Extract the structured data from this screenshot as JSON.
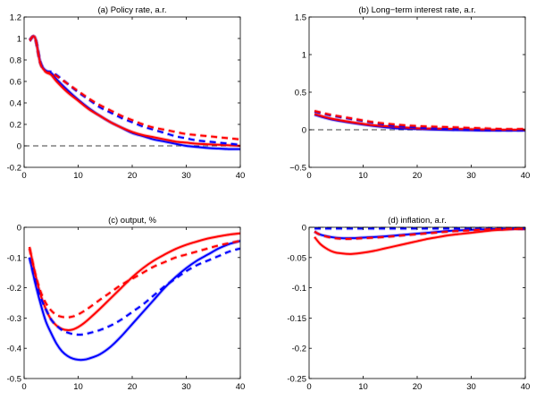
{
  "chart_data": [
    {
      "type": "line",
      "title": "(a) Policy rate, a.r.",
      "xlabel": "",
      "ylabel": "",
      "xlim": [
        0,
        40
      ],
      "ylim": [
        -0.2,
        1.2
      ],
      "xticks": [
        0,
        10,
        20,
        30,
        40
      ],
      "yticks": [
        -0.2,
        0,
        0.2,
        0.4,
        0.6,
        0.8,
        1,
        1.2
      ],
      "ytick_labels": [
        "-0.2",
        "0",
        "0.2",
        "0.4",
        "0.6",
        "0.8",
        "1",
        "1.2"
      ],
      "grid": false,
      "zero_line": true,
      "series": [
        {
          "name": "blue solid",
          "color": "#0000ff",
          "style": "solid",
          "x": [
            1,
            2,
            3,
            4,
            5,
            6,
            8,
            10,
            12,
            14,
            16,
            18,
            20,
            22,
            24,
            26,
            28,
            30,
            32,
            34,
            36,
            38,
            40
          ],
          "y": [
            0.98,
            1.01,
            0.78,
            0.7,
            0.68,
            0.62,
            0.52,
            0.43,
            0.35,
            0.28,
            0.22,
            0.17,
            0.12,
            0.09,
            0.06,
            0.04,
            0.02,
            0.0,
            -0.01,
            -0.02,
            -0.025,
            -0.03,
            -0.03
          ]
        },
        {
          "name": "red solid",
          "color": "#ff0000",
          "style": "solid",
          "x": [
            1,
            2,
            3,
            4,
            5,
            6,
            8,
            10,
            12,
            14,
            16,
            18,
            20,
            22,
            24,
            26,
            28,
            30,
            32,
            34,
            36,
            38,
            40
          ],
          "y": [
            0.98,
            1.01,
            0.77,
            0.69,
            0.66,
            0.6,
            0.5,
            0.42,
            0.34,
            0.28,
            0.22,
            0.17,
            0.13,
            0.1,
            0.08,
            0.06,
            0.04,
            0.03,
            0.02,
            0.015,
            0.01,
            0.005,
            0.0
          ]
        },
        {
          "name": "blue dashed",
          "color": "#0000ff",
          "style": "dashed",
          "x": [
            1,
            2,
            3,
            4,
            5,
            6,
            8,
            10,
            12,
            14,
            16,
            18,
            20,
            22,
            24,
            26,
            28,
            30,
            32,
            34,
            36,
            38,
            40
          ],
          "y": [
            0.98,
            1.01,
            0.78,
            0.7,
            0.69,
            0.66,
            0.58,
            0.5,
            0.43,
            0.36,
            0.31,
            0.26,
            0.22,
            0.18,
            0.15,
            0.12,
            0.09,
            0.07,
            0.05,
            0.04,
            0.03,
            0.02,
            0.01
          ]
        },
        {
          "name": "red dashed",
          "color": "#ff0000",
          "style": "dashed",
          "x": [
            1,
            2,
            3,
            4,
            5,
            6,
            8,
            10,
            12,
            14,
            16,
            18,
            20,
            22,
            24,
            26,
            28,
            30,
            32,
            34,
            36,
            38,
            40
          ],
          "y": [
            0.98,
            1.01,
            0.77,
            0.69,
            0.68,
            0.65,
            0.58,
            0.51,
            0.44,
            0.38,
            0.33,
            0.28,
            0.24,
            0.2,
            0.17,
            0.15,
            0.13,
            0.11,
            0.1,
            0.09,
            0.08,
            0.07,
            0.06
          ]
        }
      ]
    },
    {
      "type": "line",
      "title": "(b) Long−term interest rate, a.r.",
      "xlabel": "",
      "ylabel": "",
      "xlim": [
        0,
        40
      ],
      "ylim": [
        -0.5,
        1.5
      ],
      "xticks": [
        0,
        10,
        20,
        30,
        40
      ],
      "yticks": [
        -0.5,
        0,
        0.5,
        1,
        1.5
      ],
      "ytick_labels": [
        "−0.5",
        "0",
        "0.5",
        "1",
        "1.5"
      ],
      "grid": false,
      "zero_line": true,
      "series": [
        {
          "name": "blue solid",
          "color": "#0000ff",
          "style": "solid",
          "x": [
            1,
            4,
            8,
            12,
            16,
            20,
            24,
            28,
            32,
            36,
            40
          ],
          "y": [
            0.2,
            0.14,
            0.09,
            0.05,
            0.02,
            0.01,
            0.0,
            -0.005,
            -0.01,
            -0.01,
            -0.01
          ]
        },
        {
          "name": "red solid",
          "color": "#ff0000",
          "style": "solid",
          "x": [
            1,
            4,
            8,
            12,
            16,
            20,
            24,
            28,
            32,
            36,
            40
          ],
          "y": [
            0.21,
            0.15,
            0.1,
            0.06,
            0.04,
            0.02,
            0.015,
            0.01,
            0.005,
            0.0,
            0.0
          ]
        },
        {
          "name": "blue dashed",
          "color": "#0000ff",
          "style": "dashed",
          "x": [
            1,
            4,
            8,
            12,
            16,
            20,
            24,
            28,
            32,
            36,
            40
          ],
          "y": [
            0.24,
            0.19,
            0.14,
            0.09,
            0.05,
            0.03,
            0.015,
            0.005,
            0.0,
            -0.005,
            -0.005
          ]
        },
        {
          "name": "red dashed",
          "color": "#ff0000",
          "style": "dashed",
          "x": [
            1,
            4,
            8,
            12,
            16,
            20,
            24,
            28,
            32,
            36,
            40
          ],
          "y": [
            0.25,
            0.2,
            0.15,
            0.1,
            0.07,
            0.05,
            0.04,
            0.03,
            0.02,
            0.01,
            0.01
          ]
        }
      ]
    },
    {
      "type": "line",
      "title": "(c) output, %",
      "xlabel": "",
      "ylabel": "",
      "xlim": [
        0,
        40
      ],
      "ylim": [
        -0.5,
        0
      ],
      "xticks": [
        0,
        10,
        20,
        30,
        40
      ],
      "yticks": [
        -0.5,
        -0.4,
        -0.3,
        -0.2,
        -0.1,
        0
      ],
      "ytick_labels": [
        "-0.5",
        "-0.4",
        "-0.3",
        "-0.2",
        "-0.1",
        "0"
      ],
      "grid": false,
      "zero_line": false,
      "series": [
        {
          "name": "blue solid",
          "color": "#0000ff",
          "style": "solid",
          "x": [
            1,
            2,
            3,
            4,
            5,
            6,
            7,
            8,
            9,
            10,
            11,
            12,
            14,
            16,
            18,
            20,
            22,
            24,
            26,
            28,
            30,
            32,
            34,
            36,
            38,
            40
          ],
          "y": [
            -0.1,
            -0.18,
            -0.25,
            -0.31,
            -0.35,
            -0.385,
            -0.41,
            -0.425,
            -0.434,
            -0.438,
            -0.438,
            -0.434,
            -0.42,
            -0.395,
            -0.36,
            -0.32,
            -0.28,
            -0.24,
            -0.2,
            -0.165,
            -0.135,
            -0.11,
            -0.09,
            -0.07,
            -0.055,
            -0.045
          ]
        },
        {
          "name": "red solid",
          "color": "#ff0000",
          "style": "solid",
          "x": [
            1,
            2,
            3,
            4,
            5,
            6,
            7,
            8,
            9,
            10,
            11,
            12,
            14,
            16,
            18,
            20,
            22,
            24,
            26,
            28,
            30,
            32,
            34,
            36,
            38,
            40
          ],
          "y": [
            -0.065,
            -0.15,
            -0.22,
            -0.27,
            -0.305,
            -0.325,
            -0.336,
            -0.34,
            -0.338,
            -0.33,
            -0.318,
            -0.303,
            -0.27,
            -0.235,
            -0.2,
            -0.165,
            -0.135,
            -0.11,
            -0.09,
            -0.072,
            -0.058,
            -0.047,
            -0.037,
            -0.03,
            -0.024,
            -0.02
          ]
        },
        {
          "name": "blue dashed",
          "color": "#0000ff",
          "style": "dashed",
          "x": [
            1,
            2,
            3,
            4,
            5,
            6,
            7,
            8,
            9,
            10,
            11,
            12,
            14,
            16,
            18,
            20,
            22,
            24,
            26,
            28,
            30,
            32,
            34,
            36,
            38,
            40
          ],
          "y": [
            -0.1,
            -0.17,
            -0.23,
            -0.27,
            -0.305,
            -0.325,
            -0.34,
            -0.348,
            -0.353,
            -0.355,
            -0.354,
            -0.35,
            -0.34,
            -0.325,
            -0.305,
            -0.28,
            -0.255,
            -0.225,
            -0.195,
            -0.17,
            -0.145,
            -0.125,
            -0.11,
            -0.095,
            -0.08,
            -0.07
          ]
        },
        {
          "name": "red dashed",
          "color": "#ff0000",
          "style": "dashed",
          "x": [
            1,
            2,
            3,
            4,
            5,
            6,
            7,
            8,
            9,
            10,
            11,
            12,
            14,
            16,
            18,
            20,
            22,
            24,
            26,
            28,
            30,
            32,
            34,
            36,
            38,
            40
          ],
          "y": [
            -0.07,
            -0.15,
            -0.21,
            -0.25,
            -0.275,
            -0.29,
            -0.296,
            -0.298,
            -0.295,
            -0.288,
            -0.278,
            -0.266,
            -0.24,
            -0.215,
            -0.19,
            -0.17,
            -0.15,
            -0.13,
            -0.115,
            -0.1,
            -0.09,
            -0.08,
            -0.07,
            -0.06,
            -0.052,
            -0.045
          ]
        }
      ]
    },
    {
      "type": "line",
      "title": "(d) inflation, a.r.",
      "xlabel": "",
      "ylabel": "",
      "xlim": [
        0,
        40
      ],
      "ylim": [
        -0.25,
        0
      ],
      "xticks": [
        0,
        10,
        20,
        30,
        40
      ],
      "yticks": [
        -0.25,
        -0.2,
        -0.15,
        -0.1,
        -0.05,
        0
      ],
      "ytick_labels": [
        "-0.25",
        "-0.2",
        "-0.15",
        "-0.1",
        "-0.05",
        "0"
      ],
      "grid": false,
      "zero_line": true,
      "series": [
        {
          "name": "blue solid",
          "color": "#0000ff",
          "style": "solid",
          "x": [
            1,
            2,
            4,
            6,
            8,
            10,
            14,
            18,
            22,
            26,
            30,
            34,
            38,
            40
          ],
          "y": [
            -0.007,
            -0.012,
            -0.016,
            -0.018,
            -0.018,
            -0.017,
            -0.015,
            -0.012,
            -0.009,
            -0.006,
            -0.004,
            -0.003,
            -0.002,
            -0.002
          ]
        },
        {
          "name": "red solid",
          "color": "#ff0000",
          "style": "solid",
          "x": [
            1,
            2,
            3,
            4,
            5,
            6,
            7,
            8,
            10,
            12,
            14,
            16,
            18,
            20,
            22,
            24,
            26,
            28,
            30,
            32,
            34,
            36,
            38,
            40
          ],
          "y": [
            -0.016,
            -0.027,
            -0.034,
            -0.039,
            -0.042,
            -0.043,
            -0.044,
            -0.044,
            -0.042,
            -0.039,
            -0.035,
            -0.031,
            -0.027,
            -0.023,
            -0.019,
            -0.016,
            -0.013,
            -0.011,
            -0.009,
            -0.007,
            -0.005,
            -0.004,
            -0.003,
            -0.003
          ]
        },
        {
          "name": "blue dashed",
          "color": "#0000ff",
          "style": "dashed",
          "x": [
            1,
            5,
            10,
            15,
            20,
            25,
            30,
            35,
            40
          ],
          "y": [
            -0.002,
            -0.002,
            -0.002,
            -0.002,
            -0.002,
            -0.002,
            -0.002,
            -0.002,
            -0.002
          ]
        },
        {
          "name": "red dashed",
          "color": "#ff0000",
          "style": "dashed",
          "x": [
            1,
            2,
            4,
            6,
            8,
            10,
            14,
            18,
            22,
            26,
            30,
            34,
            38,
            40
          ],
          "y": [
            -0.007,
            -0.012,
            -0.017,
            -0.019,
            -0.019,
            -0.018,
            -0.016,
            -0.013,
            -0.01,
            -0.007,
            -0.005,
            -0.003,
            -0.002,
            -0.002
          ]
        }
      ]
    }
  ]
}
